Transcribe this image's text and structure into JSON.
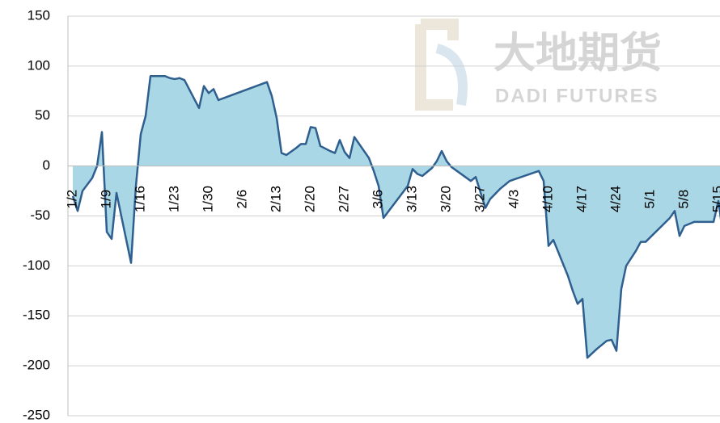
{
  "chart_data": {
    "type": "area",
    "watermark": "大地期货",
    "watermark_sub": "DADI FUTURES",
    "x": [
      "1/2",
      "1/3",
      "1/4",
      "1/6",
      "1/7",
      "1/8",
      "1/9",
      "1/10",
      "1/11",
      "1/14",
      "1/15",
      "1/16",
      "1/17",
      "1/18",
      "1/19",
      "1/21",
      "1/22",
      "1/23",
      "1/24",
      "1/25",
      "1/28",
      "1/29",
      "1/30",
      "1/31",
      "2/1",
      "2/11",
      "2/12",
      "2/13",
      "2/14",
      "2/15",
      "2/17",
      "2/18",
      "2/19",
      "2/20",
      "2/21",
      "2/22",
      "2/24",
      "2/25",
      "2/26",
      "2/27",
      "2/28",
      "3/1",
      "3/4",
      "3/5",
      "3/6",
      "3/7",
      "3/12",
      "3/13",
      "3/14",
      "3/15",
      "3/17",
      "3/18",
      "3/19",
      "3/20",
      "3/21",
      "3/25",
      "3/26",
      "3/28",
      "3/29",
      "3/31",
      "4/2",
      "4/8",
      "4/9",
      "4/10",
      "4/11",
      "4/14",
      "4/15",
      "4/16",
      "4/17",
      "4/18",
      "4/20",
      "4/22",
      "4/23",
      "4/24",
      "4/25",
      "4/26",
      "4/28",
      "4/29",
      "4/30",
      "5/5",
      "5/6",
      "5/7",
      "5/8",
      "5/9",
      "5/10",
      "5/14",
      "5/15",
      "5/16"
    ],
    "values": [
      -30,
      -45,
      -25,
      -12,
      0,
      34,
      -66,
      -73,
      -27,
      -97,
      -20,
      32,
      50,
      90,
      90,
      90,
      88,
      87,
      88,
      86,
      58,
      80,
      73,
      77,
      66,
      84,
      70,
      48,
      13,
      11,
      18,
      22,
      22,
      39,
      38,
      20,
      15,
      13,
      26,
      14,
      8,
      29,
      8,
      -5,
      -20,
      -52,
      -20,
      -3,
      -8,
      -10,
      -2,
      5,
      15,
      5,
      -1,
      -15,
      -11,
      -42,
      -33,
      -23,
      -15,
      -5,
      -15,
      -80,
      -74,
      -110,
      -125,
      -138,
      -133,
      -192,
      -183,
      -175,
      -174,
      -185,
      -123,
      -100,
      -85,
      -76,
      -76,
      -52,
      -45,
      -70,
      -60,
      -58,
      -56,
      -56,
      -35,
      -70
    ],
    "line_color": "#2f5f8f",
    "fill_color": "#aad7e6",
    "xlim": [
      "1/1",
      "5/16"
    ],
    "xticks": [
      "1/2",
      "1/9",
      "1/16",
      "1/23",
      "1/30",
      "2/6",
      "2/13",
      "2/20",
      "2/27",
      "3/6",
      "3/13",
      "3/20",
      "3/27",
      "4/3",
      "4/10",
      "4/17",
      "4/24",
      "5/1",
      "5/8",
      "5/15"
    ],
    "ylim": [
      -250,
      150
    ],
    "yticks": [
      -250,
      -200,
      -150,
      -100,
      -50,
      0,
      50,
      100,
      150
    ],
    "grid": true
  }
}
